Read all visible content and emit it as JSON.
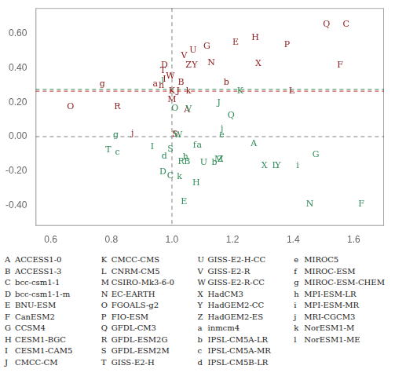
{
  "chart_data": {
    "type": "scatter",
    "marker": "text",
    "grid": false,
    "xlim": [
      0.55,
      1.7
    ],
    "ylim": [
      -0.52,
      0.75
    ],
    "xticks": [
      0.6,
      0.8,
      {
        "value": 1.0,
        "label": "1.0"
      },
      1.2,
      1.4,
      1.6
    ],
    "yticks": [
      {
        "value": -0.4,
        "label": "-0.40"
      },
      {
        "value": -0.2,
        "label": "-0.20"
      },
      {
        "value": 0.0,
        "label": "0.00"
      },
      {
        "value": 0.2,
        "label": "0.20"
      },
      {
        "value": 0.4,
        "label": "0.40"
      },
      {
        "value": 0.6,
        "label": "0.60"
      }
    ],
    "series": [
      {
        "color": "#8B1A1A",
        "labels": [
          "A",
          "B",
          "C",
          "D",
          "E",
          "F",
          "G",
          "H",
          "I",
          "J",
          "K",
          "L",
          "M",
          "N",
          "O",
          "P",
          "Q",
          "R",
          "S",
          "T",
          "U",
          "V",
          "W",
          "X",
          "Y",
          "Z",
          "a",
          "b",
          "g",
          "h",
          "j",
          "k"
        ],
        "x": [
          1.05,
          1.03,
          1.575,
          0.975,
          1.21,
          1.555,
          1.115,
          1.275,
          0.975,
          1.02,
          1.0,
          1.395,
          1.0,
          1.13,
          0.665,
          1.38,
          1.51,
          0.82,
          1.01,
          0.97,
          1.07,
          1.04,
          0.995,
          1.285,
          1.075,
          1.055,
          0.945,
          1.18,
          0.77,
          0.965,
          0.87,
          1.055
        ],
        "values": [
          0.155,
          0.315,
          0.655,
          0.415,
          0.55,
          0.415,
          0.525,
          0.575,
          0.335,
          0.265,
          0.265,
          0.265,
          0.215,
          0.43,
          0.175,
          0.535,
          0.655,
          0.175,
          0.015,
          0.385,
          0.505,
          0.47,
          0.35,
          0.425,
          0.415,
          0.415,
          0.305,
          0.315,
          0.305,
          0.295,
          0.02,
          0.265
        ]
      },
      {
        "color": "#2E8B57",
        "labels": [
          "A",
          "B",
          "C",
          "D",
          "E",
          "F",
          "G",
          "H",
          "I",
          "J",
          "K",
          "L",
          "M",
          "N",
          "O",
          "Q",
          "R",
          "S",
          "T",
          "U",
          "V",
          "W",
          "X",
          "Y",
          "Z",
          "a",
          "b",
          "c",
          "d",
          "e",
          "f",
          "g",
          "h",
          "i",
          "j",
          "k",
          "l"
        ],
        "x": [
          1.27,
          1.05,
          0.995,
          0.97,
          1.04,
          1.625,
          1.475,
          1.08,
          0.935,
          1.155,
          1.225,
          1.34,
          1.155,
          1.455,
          1.01,
          1.195,
          1.03,
          0.995,
          0.79,
          1.105,
          1.055,
          1.02,
          1.305,
          1.35,
          1.16,
          1.09,
          1.14,
          0.82,
          0.975,
          1.165,
          1.075,
          0.815,
          1.045,
          1.415,
          1.165,
          1.025,
          0.97
        ],
        "values": [
          -0.04,
          -0.145,
          -0.23,
          -0.205,
          -0.38,
          -0.395,
          -0.105,
          -0.27,
          -0.06,
          0.195,
          0.265,
          -0.17,
          -0.135,
          -0.395,
          0.165,
          0.125,
          -0.145,
          -0.075,
          -0.08,
          -0.15,
          0.16,
          0.01,
          -0.17,
          -0.17,
          -0.135,
          -0.05,
          -0.15,
          -0.09,
          -0.115,
          0.01,
          -0.05,
          0.01,
          -0.12,
          -0.17,
          0.045,
          -0.235,
          0.325
        ]
      }
    ],
    "reference_lines": [
      {
        "axis": "y",
        "value": 0,
        "color": "#808080",
        "line_style": "dashed"
      },
      {
        "axis": "x",
        "value": 1.0,
        "color": "#808080",
        "line_style": "dashed"
      },
      {
        "axis": "y",
        "value": 0.265,
        "color": "#CC3333",
        "line_style": "dashed"
      },
      {
        "axis": "y",
        "value": 0.275,
        "color": "#2E8B57",
        "line_style": "dashed"
      }
    ],
    "key_legend": [
      [
        [
          "A",
          "ACCESS1-0"
        ],
        [
          "B",
          "ACCESS1-3"
        ],
        [
          "C",
          "bcc-csm1-1"
        ],
        [
          "D",
          "bcc-csm1-1-m"
        ],
        [
          "E",
          "BNU-ESM"
        ],
        [
          "F",
          "CanESM2"
        ],
        [
          "G",
          "CCSM4"
        ],
        [
          "H",
          "CESM1-BGC"
        ],
        [
          "I",
          "CESM1-CAM5"
        ],
        [
          "J",
          "CMCC-CM"
        ]
      ],
      [
        [
          "K",
          "CMCC-CMS"
        ],
        [
          "L",
          "CNRM-CM5"
        ],
        [
          "M",
          "CSIRO-Mk3-6-0"
        ],
        [
          "N",
          "EC-EARTH"
        ],
        [
          "O",
          "FGOALS-g2"
        ],
        [
          "P",
          "FIO-ESM"
        ],
        [
          "Q",
          "GFDL-CM3"
        ],
        [
          "R",
          "GFDL-ESM2G"
        ],
        [
          "S",
          "GFDL-ESM2M"
        ],
        [
          "T",
          "GISS-E2-H"
        ]
      ],
      [
        [
          "U",
          "GISS-E2-H-CC"
        ],
        [
          "V",
          "GISS-E2-R"
        ],
        [
          "W",
          "GISS-E2-R-CC"
        ],
        [
          "X",
          "HadCM3"
        ],
        [
          "Y",
          "HadGEM2-CC"
        ],
        [
          "Z",
          "HadGEM2-ES"
        ],
        [
          "a",
          "inmcm4"
        ],
        [
          "b",
          "IPSL-CM5A-LR"
        ],
        [
          "c",
          "IPSL-CM5A-MR"
        ],
        [
          "d",
          "IPSL-CM5B-LR"
        ]
      ],
      [
        [
          "e",
          "MIROC5"
        ],
        [
          "f",
          "MIROC-ESM"
        ],
        [
          "g",
          "MIROC-ESM-CHEM"
        ],
        [
          "h",
          "MPI-ESM-LR"
        ],
        [
          "i",
          "MPI-ESM-MR"
        ],
        [
          "j",
          "MRI-CGCM3"
        ],
        [
          "k",
          "NorESM1-M"
        ],
        [
          "l",
          "NorESM1-ME"
        ]
      ]
    ]
  }
}
